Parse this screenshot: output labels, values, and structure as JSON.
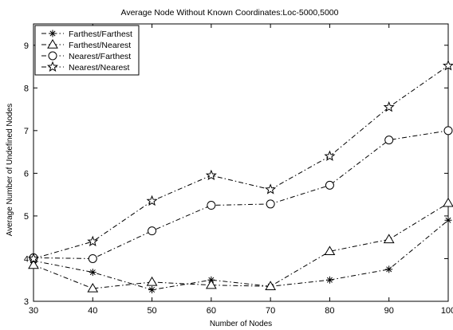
{
  "chart_data": {
    "type": "line",
    "title": "Average Node Without Known Coordinates:Loc-5000,5000",
    "xlabel": "Number of Nodes",
    "ylabel": "Average Number of Undefined Nodes",
    "x": [
      30,
      40,
      50,
      60,
      70,
      80,
      90,
      100
    ],
    "xlim": [
      30,
      100
    ],
    "ylim": [
      3,
      9.5
    ],
    "xticks": [
      30,
      40,
      50,
      60,
      70,
      80,
      90,
      100
    ],
    "yticks": [
      3,
      4,
      5,
      6,
      7,
      8,
      9
    ],
    "grid": false,
    "legend_position": "top-left",
    "series": [
      {
        "name": "Farthest/Farthest",
        "marker": "asterisk",
        "values": [
          3.95,
          3.68,
          3.27,
          3.5,
          3.35,
          3.5,
          3.75,
          4.9
        ]
      },
      {
        "name": "Farthest/Nearest",
        "marker": "triangle",
        "values": [
          3.85,
          3.3,
          3.45,
          3.38,
          3.35,
          4.17,
          4.45,
          5.3
        ]
      },
      {
        "name": "Nearest/Farthest",
        "marker": "circle",
        "values": [
          4.02,
          4.0,
          4.65,
          5.25,
          5.28,
          5.72,
          6.78,
          7.0
        ]
      },
      {
        "name": "Nearest/Nearest",
        "marker": "star",
        "values": [
          4.0,
          4.4,
          5.35,
          5.95,
          5.62,
          6.4,
          7.55,
          8.52
        ]
      }
    ]
  }
}
